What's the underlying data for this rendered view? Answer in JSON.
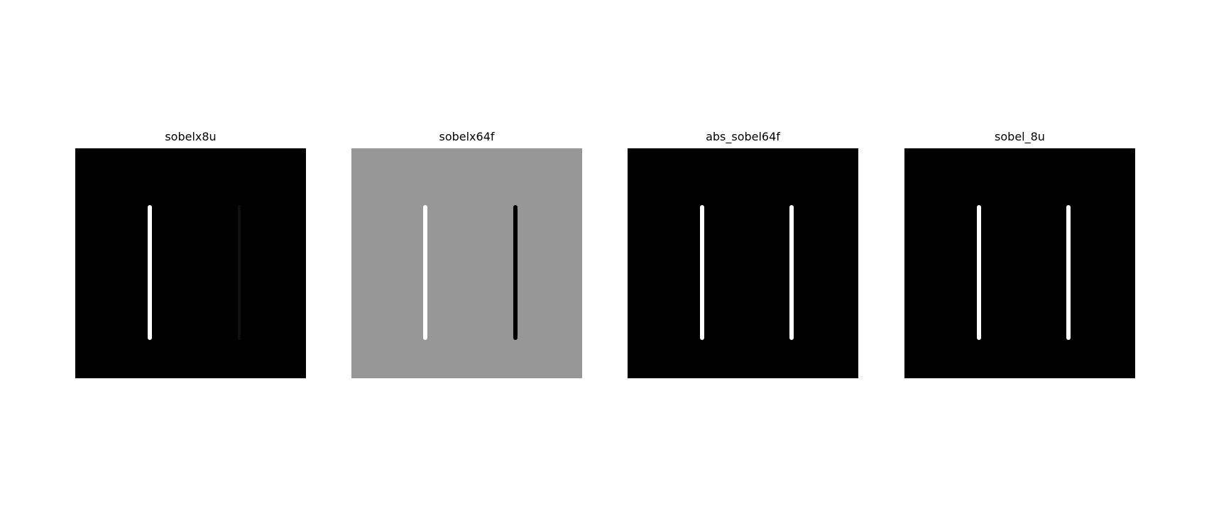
{
  "panels": [
    {
      "title": "sobelx8u",
      "background": "#000000",
      "lines": [
        {
          "color": "#ffffff",
          "style": "solid"
        },
        {
          "color": "#1a1a1a",
          "style": "faint"
        }
      ]
    },
    {
      "title": "sobelx64f",
      "background": "#979797",
      "lines": [
        {
          "color": "#ffffff",
          "style": "solid"
        },
        {
          "color": "#000000",
          "style": "solid"
        }
      ]
    },
    {
      "title": "abs_sobel64f",
      "background": "#000000",
      "lines": [
        {
          "color": "#ffffff",
          "style": "solid"
        },
        {
          "color": "#ffffff",
          "style": "solid"
        }
      ]
    },
    {
      "title": "sobel_8u",
      "background": "#000000",
      "lines": [
        {
          "color": "#ffffff",
          "style": "solid"
        },
        {
          "color": "#ffffff",
          "style": "solid"
        }
      ]
    }
  ]
}
